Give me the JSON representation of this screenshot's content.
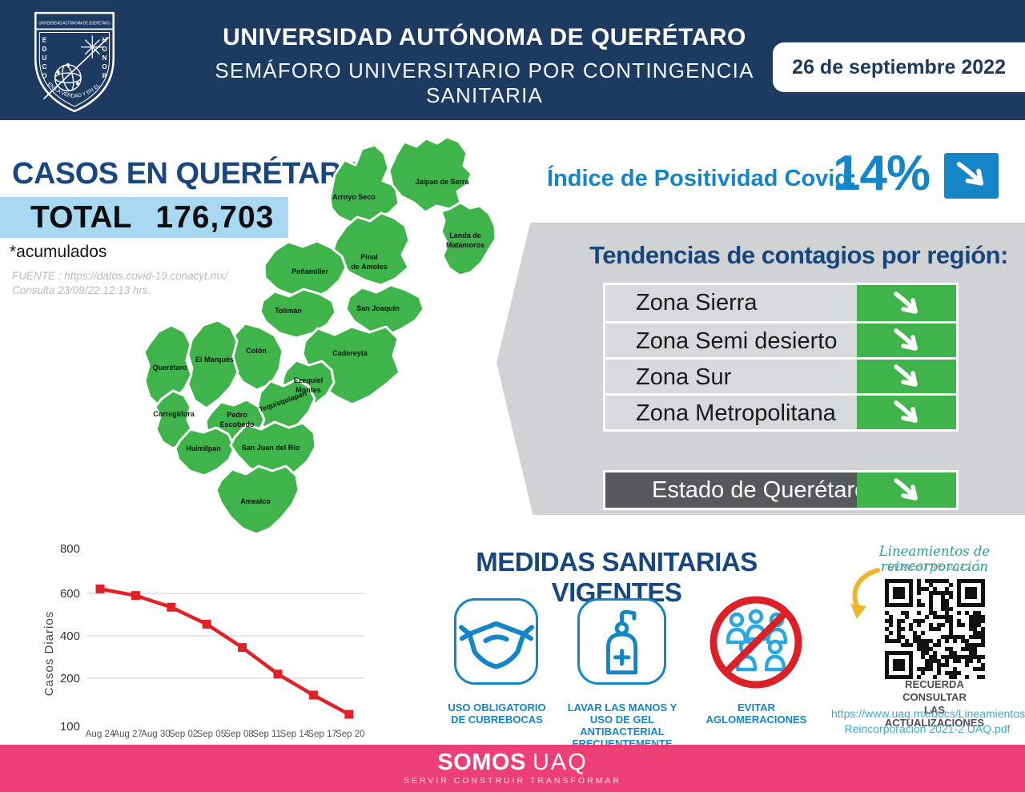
{
  "colors": {
    "navy": "#1d3a60",
    "heading": "#17477e",
    "blue": "#1486c7",
    "lightblue": "#a9d9f2",
    "green": "#3eb44a",
    "pink": "#ec3f76",
    "red": "#e02228"
  },
  "header": {
    "title": "UNIVERSIDAD AUTÓNOMA DE QUERÉTARO",
    "subtitle": "SEMÁFORO UNIVERSITARIO POR CONTINGENCIA SANITARIA",
    "date_badge": "26 de septiembre 2022",
    "logo": {
      "band": "UNIVERSIDAD AUTÓNOMA DE QUERÉTARO",
      "motto_left": "EDUCO",
      "motto_right": "HONOR",
      "motto_bottom": "EN LA VERDAD Y EN EL"
    }
  },
  "cases": {
    "heading": "CASOS EN QUERÉTARO",
    "total_label": "TOTAL",
    "total_value": "176,703",
    "note": "*acumulados",
    "source_line1": "FUENTE : https://datos.covid-19.conacyt.mx/",
    "source_line2": "Consulta 23/09/22    12:13 hrs."
  },
  "positivity": {
    "label": "Índice de Positividad Covid:",
    "value": "14%",
    "trend": "down"
  },
  "trends": {
    "title": "Tendencias de contagios por región:",
    "rows": [
      {
        "label": "Zona Sierra",
        "trend": "down"
      },
      {
        "label": "Zona Semi desierto",
        "trend": "down"
      },
      {
        "label": "Zona Sur",
        "trend": "down"
      },
      {
        "label": "Zona Metropolitana",
        "trend": "down"
      }
    ],
    "state_row": {
      "label": "Estado de Querétaro",
      "trend": "down"
    }
  },
  "map": {
    "municipalities": [
      {
        "name": "Arroyo Seco"
      },
      {
        "name": "Jalpan de Serra"
      },
      {
        "name": "Landa de Matamoros",
        "lines": [
          "Landa de",
          "Matamoros"
        ]
      },
      {
        "name": "Peñamiller"
      },
      {
        "name": "Pinal de Amoles",
        "lines": [
          "Pinal",
          "de Amoles"
        ]
      },
      {
        "name": "San Joaquín"
      },
      {
        "name": "Tolimán"
      },
      {
        "name": "Colón"
      },
      {
        "name": "Cadereyta"
      },
      {
        "name": "El Marqués"
      },
      {
        "name": "Querétaro"
      },
      {
        "name": "Corregidora"
      },
      {
        "name": "Ezequiel Montes",
        "lines": [
          "Ezequiel",
          "Montes"
        ]
      },
      {
        "name": "Tequisquiapan"
      },
      {
        "name": "Pedro Escobedo",
        "lines": [
          "Pedro",
          "Escobedo"
        ]
      },
      {
        "name": "Huimilpan"
      },
      {
        "name": "San Juan del Río"
      },
      {
        "name": "Amealco"
      }
    ]
  },
  "chart_data": {
    "type": "line",
    "title": "",
    "xlabel": "",
    "ylabel": "Casos  Diarios",
    "x_labels": [
      "Aug 24",
      "Aug 27",
      "Aug 30",
      "Sep 02",
      "Sep 05",
      "Sep 08",
      "Sep 11",
      "Sep 14",
      "Sep 17",
      "Sep 20"
    ],
    "y_ticks": [
      800,
      600,
      400,
      200,
      100
    ],
    "gridline_values": [
      600,
      400,
      200
    ],
    "ylim": [
      100,
      800
    ],
    "legend": false,
    "series": [
      {
        "name": "Casos diarios",
        "color": "#e02228",
        "marker": "square",
        "values": [
          620,
          590,
          535,
          455,
          345,
          220,
          165,
          125
        ]
      }
    ]
  },
  "measures": {
    "title": "MEDIDAS SANITARIAS VIGENTES",
    "items": [
      {
        "icon": "face-mask-icon",
        "lines": [
          "USO OBLIGATORIO",
          "DE CUBREBOCAS"
        ]
      },
      {
        "icon": "sanitizer-gel-icon",
        "lines": [
          "LAVAR LAS MANOS Y",
          "USO DE GEL ANTIBACTERIAL",
          "FRECUENTEMENTE"
        ]
      },
      {
        "icon": "no-crowds-icon",
        "lines": [
          "EVITAR",
          "AGLOMERACIONES"
        ]
      }
    ]
  },
  "qr": {
    "heading": "Lineamientos de reincorporación",
    "subheading": "SEMESTRE 2022-1",
    "note_line1": "RECUERDA CONSULTAR",
    "note_line2": "LAS ACTUALIZACIONES",
    "url_line1": "https://www.uaq.mx/docs/Lineamientos",
    "url_line2": "Reincorporacion  2021-2  UAQ.pdf"
  },
  "footer": {
    "brand_bold": "SOMOS",
    "brand_light": "UAQ",
    "tagline": "SERVIR CONSTRUIR TRANSFORMAR"
  }
}
